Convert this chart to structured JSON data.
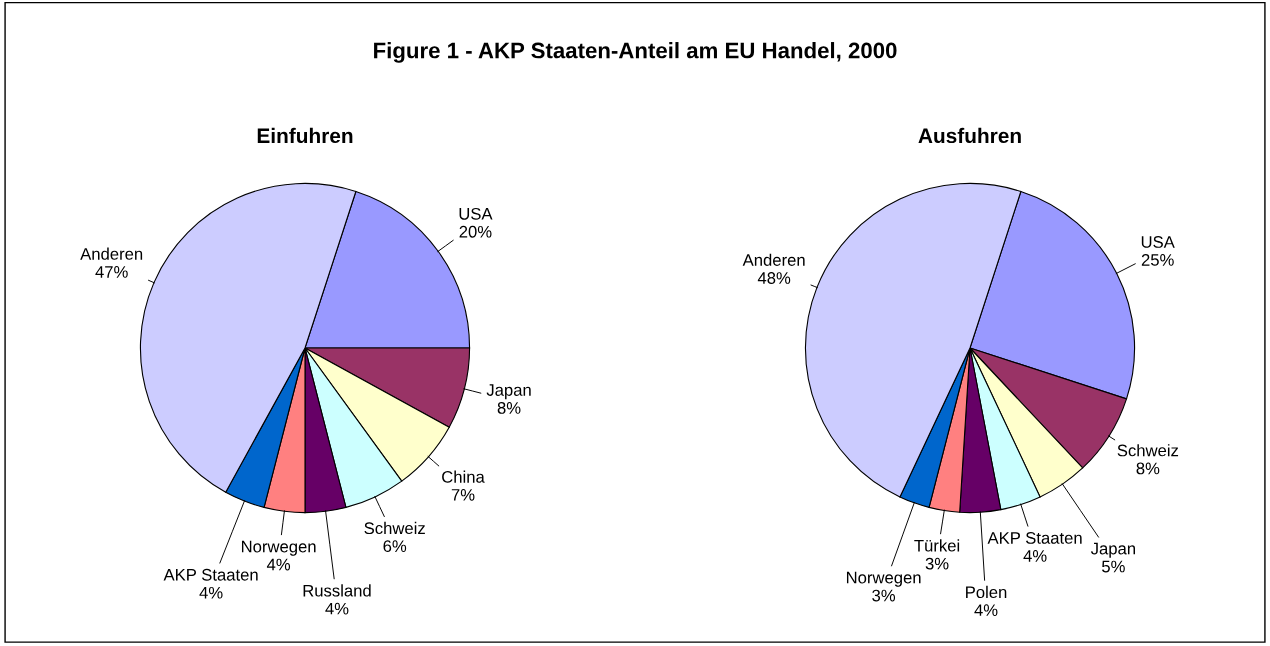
{
  "chart_data": [
    {
      "type": "pie",
      "title": "Einfuhren",
      "annotations": [
        "Figure 1 - AKP Staaten-Anteil am EU Handel, 2000"
      ],
      "categories": [
        "USA",
        "Japan",
        "China",
        "Schweiz",
        "Russland",
        "Norwegen",
        "AKP Staaten",
        "Anderen"
      ],
      "values": [
        20,
        8,
        7,
        6,
        4,
        4,
        4,
        47
      ],
      "value_labels": [
        "20%",
        "8%",
        "7%",
        "6%",
        "4%",
        "4%",
        "4%",
        "47%"
      ],
      "colors": [
        "#9999ff",
        "#993366",
        "#ffffcc",
        "#ccffff",
        "#660066",
        "#ff8080",
        "#0066cc",
        "#ccccff"
      ]
    },
    {
      "type": "pie",
      "title": "Ausfuhren",
      "categories": [
        "USA",
        "Schweiz",
        "Japan",
        "AKP Staaten",
        "Polen",
        "Türkei",
        "Norwegen",
        "Anderen"
      ],
      "values": [
        25,
        8,
        5,
        4,
        4,
        3,
        3,
        48
      ],
      "value_labels": [
        "25%",
        "8%",
        "5%",
        "4%",
        "4%",
        "3%",
        "3%",
        "48%"
      ],
      "colors": [
        "#9999ff",
        "#993366",
        "#ffffcc",
        "#ccffff",
        "#660066",
        "#ff8080",
        "#0066cc",
        "#ccccff"
      ]
    }
  ]
}
